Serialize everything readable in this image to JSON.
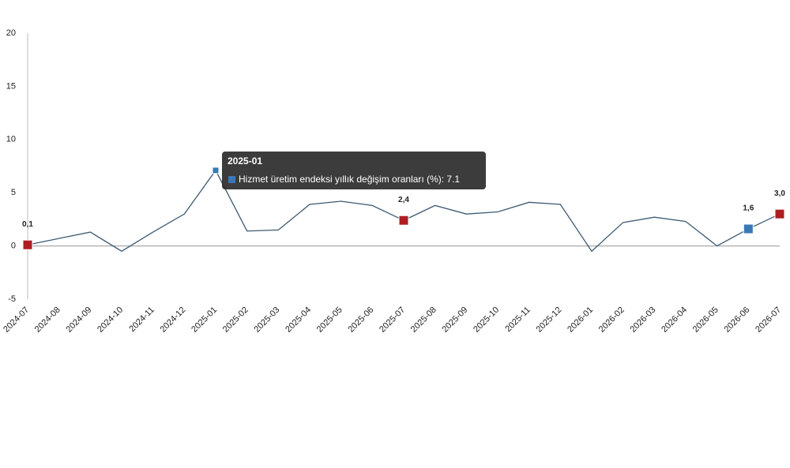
{
  "chart_data": {
    "type": "line",
    "categories": [
      "2024-07",
      "2024-08",
      "2024-09",
      "2024-10",
      "2024-11",
      "2024-12",
      "2025-01",
      "2025-02",
      "2025-03",
      "2025-04",
      "2025-05",
      "2025-06",
      "2025-07",
      "2025-08",
      "2025-09",
      "2025-10",
      "2025-11",
      "2025-12",
      "2026-01",
      "2026-02",
      "2026-03",
      "2026-04",
      "2026-05",
      "2026-06",
      "2026-07"
    ],
    "series": [
      {
        "name": "Hizmet üretim endeksi yıllık değişim oranları (%)",
        "color": "#3d5a73",
        "values": [
          0.1,
          0.7,
          1.3,
          -0.5,
          1.3,
          3.0,
          7.1,
          1.4,
          1.5,
          3.9,
          4.2,
          3.8,
          2.4,
          3.8,
          3.0,
          3.2,
          4.1,
          3.9,
          -0.5,
          2.2,
          2.7,
          2.3,
          0.0,
          1.6,
          3.0
        ],
        "value_labels": [
          "0,1",
          null,
          null,
          null,
          null,
          null,
          null,
          null,
          null,
          null,
          null,
          null,
          "2,4",
          null,
          null,
          null,
          null,
          null,
          null,
          null,
          null,
          null,
          null,
          "1,6",
          "3,0"
        ],
        "marker_colors": [
          "#b01c22",
          null,
          null,
          null,
          null,
          null,
          "#3a78b5",
          null,
          null,
          null,
          null,
          null,
          "#b01c22",
          null,
          null,
          null,
          null,
          null,
          null,
          null,
          null,
          null,
          null,
          "#3a78b5",
          "#b01c22"
        ]
      }
    ],
    "ylim": [
      -5,
      20
    ],
    "yticks": [
      -5,
      0,
      5,
      10,
      15,
      20
    ],
    "tooltip": {
      "title": "2025-01",
      "text": "Hizmet üretim endeksi yıllık değişim oranları (%): 7.1",
      "index": 6
    }
  }
}
